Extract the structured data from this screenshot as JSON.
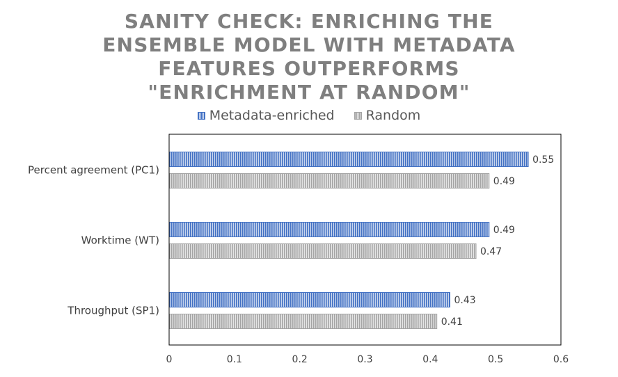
{
  "chart_data": {
    "type": "bar",
    "orientation": "horizontal",
    "title_lines": [
      "SANITY CHECK: ENRICHING THE",
      "ENSEMBLE MODEL WITH METADATA",
      "FEATURES OUTPERFORMS",
      "\"ENRICHMENT AT RANDOM\""
    ],
    "categories": [
      "Percent agreement (PC1)",
      "Worktime (WT)",
      "Throughput (SP1)"
    ],
    "series": [
      {
        "name": "Metadata-enriched",
        "values": [
          0.55,
          0.49,
          0.43
        ],
        "color": "#4472c4",
        "label_text": [
          "0.55",
          "0.49",
          "0.43"
        ]
      },
      {
        "name": "Random",
        "values": [
          0.49,
          0.47,
          0.41
        ],
        "color": "#a5a5a5",
        "label_text": [
          "0.49",
          "0.47",
          "0.41"
        ]
      }
    ],
    "xlim": [
      0,
      0.6
    ],
    "x_ticks": [
      0,
      0.1,
      0.2,
      0.3,
      0.4,
      0.5,
      0.6
    ],
    "x_tick_labels": [
      "0",
      "0.1",
      "0.2",
      "0.3",
      "0.4",
      "0.5",
      "0.6"
    ],
    "legend_position": "top",
    "grid": false,
    "data_labels": true
  }
}
